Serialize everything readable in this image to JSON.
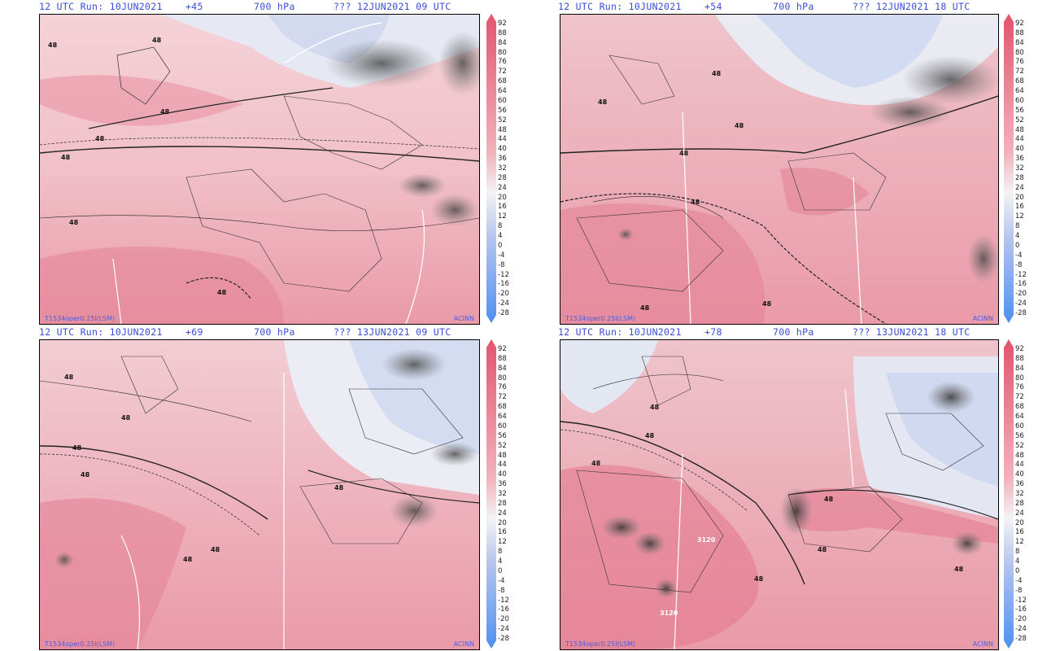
{
  "colors": {
    "header_text": "#3a4fd8",
    "warm_high": "#e2546e",
    "warm_mid": "#f1b3bc",
    "neutral": "#f3f3f5",
    "cool_mid": "#b7c6ee",
    "cool_low": "#4f8ff0",
    "contour": "#222222",
    "cloud_shade": "#555555"
  },
  "panels": [
    {
      "run": "12 UTC Run: 10JUN2021",
      "step": "+45",
      "level": "700 hPa",
      "valid": "??? 12JUN2021 09 UTC",
      "footer_left": "T1534oper0.25l(LSM)",
      "footer_right": "ACINN",
      "contour_labels": [
        "48",
        "48",
        "48",
        "48",
        "48",
        "48",
        "48"
      ]
    },
    {
      "run": "12 UTC Run: 10JUN2021",
      "step": "+54",
      "level": "700 hPa",
      "valid": "??? 12JUN2021 18 UTC",
      "footer_left": "T1534oper0.25l(LSM)",
      "footer_right": "ACINN",
      "contour_labels": [
        "48",
        "48",
        "48",
        "48",
        "48",
        "48",
        "48"
      ]
    },
    {
      "run": "12 UTC Run: 10JUN2021",
      "step": "+69",
      "level": "700 hPa",
      "valid": "??? 13JUN2021 09 UTC",
      "footer_left": "T1534oper0.25l(LSM)",
      "footer_right": "ACINN",
      "contour_labels": [
        "48",
        "48",
        "48",
        "48",
        "48",
        "48",
        "48"
      ]
    },
    {
      "run": "12 UTC Run: 10JUN2021",
      "step": "+78",
      "level": "700 hPa",
      "valid": "??? 13JUN2021 18 UTC",
      "footer_left": "T1534oper0.25l(LSM)",
      "footer_right": "ACINN",
      "contour_labels": [
        "48",
        "48",
        "48",
        "48",
        "48",
        "48",
        "48",
        "3120",
        "3120"
      ]
    }
  ],
  "color_scale": {
    "ticks": [
      "92",
      "88",
      "84",
      "80",
      "76",
      "72",
      "68",
      "64",
      "60",
      "56",
      "52",
      "48",
      "44",
      "40",
      "36",
      "32",
      "28",
      "24",
      "20",
      "16",
      "12",
      "8",
      "4",
      "0",
      "-4",
      "-8",
      "-12",
      "-16",
      "-20",
      "-24",
      "-28"
    ]
  }
}
